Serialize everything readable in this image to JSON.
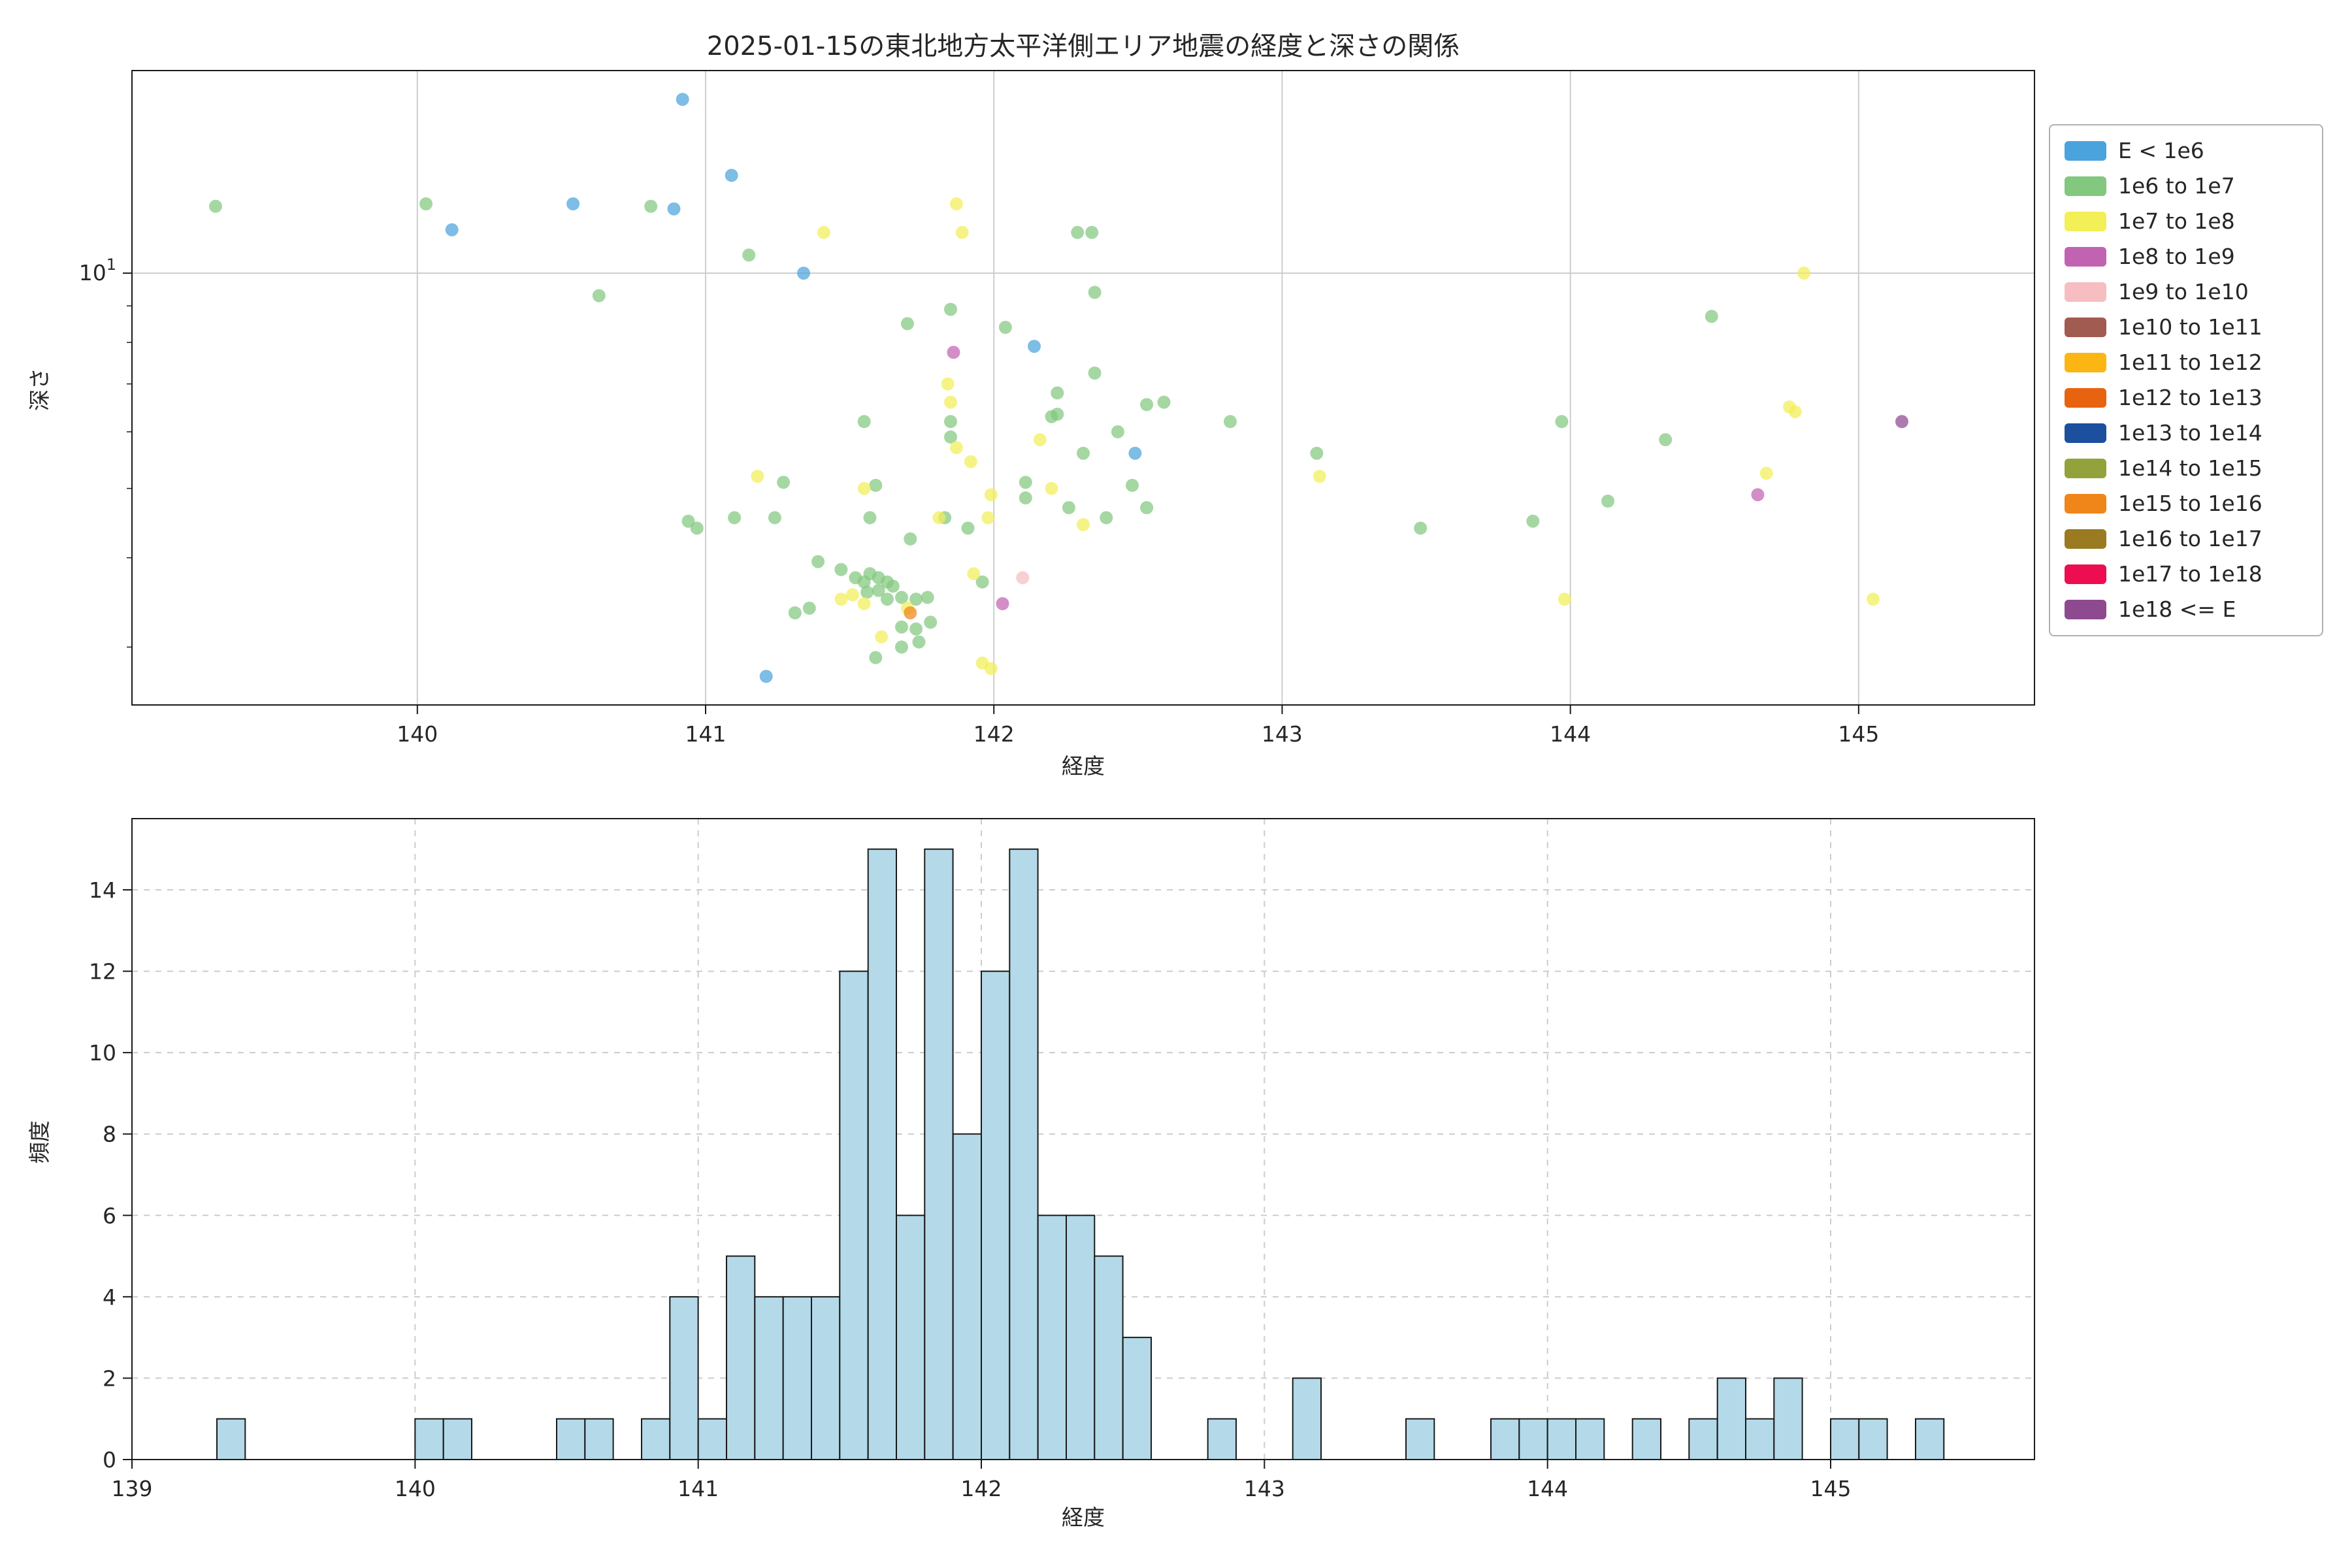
{
  "chart_data": [
    {
      "type": "scatter",
      "title": "2025-01-15の東北地方太平洋側エリア地震の経度と深さの関係",
      "xlabel": "経度",
      "ylabel": "深さ",
      "xlim": [
        139.01,
        145.61
      ],
      "ylim": [
        2.49,
        19.2
      ],
      "y_scale": "log",
      "x_ticks": [
        140,
        141,
        142,
        143,
        144,
        145
      ],
      "y_major_tick": {
        "value": 10,
        "label": "10^1"
      },
      "y_minor_ticks": [
        3,
        4,
        5,
        6,
        7,
        8,
        9
      ],
      "grid": true,
      "marker_alpha": 0.72,
      "legend": {
        "position": "outside-right",
        "entries": [
          {
            "label": "E < 1e6",
            "color": "#4ba3dd"
          },
          {
            "label": "1e6 to 1e7",
            "color": "#82c87e"
          },
          {
            "label": "1e7 to 1e8",
            "color": "#f3ef57"
          },
          {
            "label": "1e8 to 1e9",
            "color": "#c263b2"
          },
          {
            "label": "1e9 to 1e10",
            "color": "#f6bec1"
          },
          {
            "label": "1e10 to 1e11",
            "color": "#a25b51"
          },
          {
            "label": "1e11 to 1e12",
            "color": "#fcb614"
          },
          {
            "label": "1e12 to 1e13",
            "color": "#e8630f"
          },
          {
            "label": "1e13 to 1e14",
            "color": "#1d4f9f"
          },
          {
            "label": "1e14 to 1e15",
            "color": "#94a23b"
          },
          {
            "label": "1e15 to 1e16",
            "color": "#f08519"
          },
          {
            "label": "1e16 to 1e17",
            "color": "#9b7b22"
          },
          {
            "label": "1e17 to 1e18",
            "color": "#ed0e52"
          },
          {
            "label": "1e18 <= E",
            "color": "#8d4a8f"
          }
        ]
      },
      "points_format": [
        "longitude",
        "depth",
        "legend_bin_index"
      ],
      "points": [
        [
          140.92,
          17.5,
          0
        ],
        [
          141.09,
          13.7,
          0
        ],
        [
          140.54,
          12.5,
          0
        ],
        [
          140.89,
          12.3,
          0
        ],
        [
          140.12,
          11.5,
          0
        ],
        [
          141.34,
          10.0,
          0
        ],
        [
          142.14,
          7.9,
          0
        ],
        [
          142.49,
          5.6,
          0
        ],
        [
          141.21,
          2.73,
          0
        ],
        [
          139.3,
          12.4,
          1
        ],
        [
          140.03,
          12.5,
          1
        ],
        [
          140.81,
          12.4,
          1
        ],
        [
          140.63,
          9.3,
          1
        ],
        [
          141.15,
          10.6,
          1
        ],
        [
          142.29,
          11.4,
          1
        ],
        [
          142.34,
          11.4,
          1
        ],
        [
          142.35,
          9.4,
          1
        ],
        [
          141.7,
          8.5,
          1
        ],
        [
          141.85,
          8.9,
          1
        ],
        [
          142.04,
          8.4,
          1
        ],
        [
          144.49,
          8.7,
          1
        ],
        [
          142.35,
          7.25,
          1
        ],
        [
          142.22,
          6.8,
          1
        ],
        [
          142.22,
          6.35,
          1
        ],
        [
          141.85,
          6.2,
          1
        ],
        [
          141.85,
          5.9,
          1
        ],
        [
          141.55,
          6.2,
          1
        ],
        [
          142.2,
          6.3,
          1
        ],
        [
          142.31,
          5.6,
          1
        ],
        [
          142.43,
          6.0,
          1
        ],
        [
          142.53,
          6.55,
          1
        ],
        [
          142.59,
          6.6,
          1
        ],
        [
          142.82,
          6.2,
          1
        ],
        [
          143.97,
          6.2,
          1
        ],
        [
          144.33,
          5.85,
          1
        ],
        [
          143.12,
          5.6,
          1
        ],
        [
          142.48,
          5.05,
          1
        ],
        [
          142.11,
          5.1,
          1
        ],
        [
          142.11,
          4.85,
          1
        ],
        [
          142.26,
          4.7,
          1
        ],
        [
          142.39,
          4.55,
          1
        ],
        [
          142.53,
          4.7,
          1
        ],
        [
          141.59,
          5.05,
          1
        ],
        [
          141.27,
          5.1,
          1
        ],
        [
          140.94,
          4.5,
          1
        ],
        [
          140.97,
          4.4,
          1
        ],
        [
          141.1,
          4.55,
          1
        ],
        [
          141.24,
          4.55,
          1
        ],
        [
          143.48,
          4.4,
          1
        ],
        [
          143.87,
          4.5,
          1
        ],
        [
          144.13,
          4.8,
          1
        ],
        [
          141.83,
          4.55,
          1
        ],
        [
          141.91,
          4.4,
          1
        ],
        [
          141.71,
          4.25,
          1
        ],
        [
          141.57,
          4.55,
          1
        ],
        [
          141.39,
          3.95,
          1
        ],
        [
          141.47,
          3.85,
          1
        ],
        [
          141.52,
          3.75,
          1
        ],
        [
          141.55,
          3.7,
          1
        ],
        [
          141.57,
          3.8,
          1
        ],
        [
          141.6,
          3.75,
          1
        ],
        [
          141.63,
          3.7,
          1
        ],
        [
          141.65,
          3.65,
          1
        ],
        [
          141.6,
          3.6,
          1
        ],
        [
          141.56,
          3.58,
          1
        ],
        [
          141.63,
          3.5,
          1
        ],
        [
          141.68,
          3.52,
          1
        ],
        [
          141.73,
          3.5,
          1
        ],
        [
          141.77,
          3.52,
          1
        ],
        [
          141.96,
          3.7,
          1
        ],
        [
          141.36,
          3.4,
          1
        ],
        [
          141.31,
          3.35,
          1
        ],
        [
          141.68,
          3.2,
          1
        ],
        [
          141.73,
          3.18,
          1
        ],
        [
          141.78,
          3.25,
          1
        ],
        [
          141.68,
          3.0,
          1
        ],
        [
          141.74,
          3.05,
          1
        ],
        [
          141.59,
          2.9,
          1
        ],
        [
          141.87,
          12.5,
          2
        ],
        [
          141.89,
          11.4,
          2
        ],
        [
          141.41,
          11.4,
          2
        ],
        [
          144.81,
          10.0,
          2
        ],
        [
          141.84,
          7.0,
          2
        ],
        [
          141.85,
          6.6,
          2
        ],
        [
          142.16,
          5.85,
          2
        ],
        [
          143.13,
          5.2,
          2
        ],
        [
          141.87,
          5.7,
          2
        ],
        [
          141.92,
          5.45,
          2
        ],
        [
          141.99,
          4.9,
          2
        ],
        [
          141.98,
          4.55,
          2
        ],
        [
          142.2,
          5.0,
          2
        ],
        [
          142.31,
          4.45,
          2
        ],
        [
          141.55,
          5.0,
          2
        ],
        [
          141.18,
          5.2,
          2
        ],
        [
          144.68,
          5.25,
          2
        ],
        [
          144.76,
          6.5,
          2
        ],
        [
          144.78,
          6.4,
          2
        ],
        [
          141.51,
          3.55,
          2
        ],
        [
          141.47,
          3.5,
          2
        ],
        [
          141.55,
          3.45,
          2
        ],
        [
          141.7,
          3.4,
          2
        ],
        [
          141.93,
          3.8,
          2
        ],
        [
          141.61,
          3.1,
          2
        ],
        [
          141.96,
          2.85,
          2
        ],
        [
          141.99,
          2.8,
          2
        ],
        [
          143.98,
          3.5,
          2
        ],
        [
          145.05,
          3.5,
          2
        ],
        [
          141.81,
          4.55,
          2
        ],
        [
          141.86,
          7.75,
          3
        ],
        [
          144.65,
          4.9,
          3
        ],
        [
          142.03,
          3.45,
          3
        ],
        [
          142.1,
          3.75,
          4
        ],
        [
          141.71,
          3.35,
          10
        ],
        [
          145.15,
          6.2,
          13
        ]
      ]
    },
    {
      "type": "bar",
      "xlabel": "経度",
      "ylabel": "頻度",
      "xlim": [
        139.0,
        145.72
      ],
      "ylim": [
        0,
        15.75
      ],
      "x_ticks": [
        139,
        140,
        141,
        142,
        143,
        144,
        145
      ],
      "y_ticks": [
        0,
        2,
        4,
        6,
        8,
        10,
        12,
        14
      ],
      "grid_style": "dashed",
      "bar_color": "#b4d9e9",
      "bar_edge_color": "#1a1a1a",
      "bin_start": 139.3,
      "bin_width": 0.1,
      "counts": [
        1,
        0,
        0,
        0,
        0,
        0,
        0,
        1,
        1,
        0,
        0,
        0,
        1,
        1,
        0,
        1,
        4,
        1,
        5,
        4,
        4,
        4,
        12,
        15,
        6,
        15,
        8,
        12,
        15,
        6,
        6,
        5,
        3,
        0,
        0,
        1,
        0,
        0,
        2,
        0,
        0,
        0,
        1,
        0,
        0,
        1,
        1,
        1,
        1,
        0,
        1,
        0,
        1,
        2,
        1,
        2,
        0,
        1,
        1,
        0,
        1
      ]
    }
  ]
}
